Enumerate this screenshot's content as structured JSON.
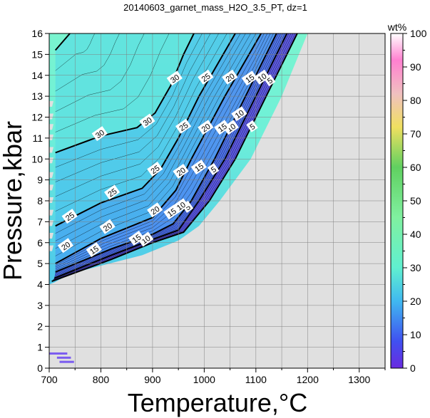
{
  "chart_data": {
    "type": "heatmap",
    "title": "20140603_garnet_mass_H2O_3.5_PT, dz=1",
    "xlabel": "Temperature,°C",
    "ylabel": "Pressure,kbar",
    "xlim": [
      700,
      1350
    ],
    "ylim": [
      0,
      16
    ],
    "xticks": [
      700,
      800,
      900,
      1000,
      1100,
      1200,
      1300
    ],
    "yticks": [
      0,
      1,
      2,
      3,
      4,
      5,
      6,
      7,
      8,
      9,
      10,
      11,
      12,
      13,
      14,
      15,
      16
    ],
    "grid": true,
    "colorbar": {
      "label": "wt%",
      "range": [
        0,
        100
      ],
      "ticks": [
        0,
        10,
        20,
        30,
        40,
        50,
        60,
        70,
        80,
        90,
        100
      ]
    },
    "no_data_color": "#e0e0e0",
    "contour_interval": 1,
    "labeled_contours": [
      {
        "level": 5,
        "points": [
          [
            705,
            4.15
          ],
          [
            820,
            5.2
          ],
          [
            900,
            6.0
          ],
          [
            960,
            6.5
          ],
          [
            1010,
            8.0
          ],
          [
            1060,
            10.0
          ],
          [
            1120,
            13.0
          ],
          [
            1180,
            16.0
          ]
        ]
      },
      {
        "level": 10,
        "points": [
          [
            710,
            4.3
          ],
          [
            820,
            5.4
          ],
          [
            900,
            6.15
          ],
          [
            950,
            6.6
          ],
          [
            990,
            8.0
          ],
          [
            1040,
            10.0
          ],
          [
            1100,
            13.0
          ],
          [
            1160,
            16.0
          ]
        ]
      },
      {
        "level": 15,
        "points": [
          [
            712,
            4.6
          ],
          [
            820,
            5.7
          ],
          [
            900,
            6.4
          ],
          [
            940,
            6.9
          ],
          [
            975,
            8.0
          ],
          [
            1020,
            10.0
          ],
          [
            1080,
            13.0
          ],
          [
            1140,
            16.0
          ]
        ]
      },
      {
        "level": 20,
        "points": [
          [
            712,
            5.0
          ],
          [
            800,
            6.2
          ],
          [
            900,
            7.2
          ],
          [
            945,
            8.5
          ],
          [
            975,
            10.0
          ],
          [
            1040,
            13.0
          ],
          [
            1110,
            16.0
          ]
        ]
      },
      {
        "level": 25,
        "points": [
          [
            712,
            6.8
          ],
          [
            800,
            7.9
          ],
          [
            880,
            8.6
          ],
          [
            915,
            9.5
          ],
          [
            950,
            11.0
          ],
          [
            990,
            13.0
          ],
          [
            1060,
            16.0
          ]
        ]
      },
      {
        "level": 30,
        "points": [
          [
            712,
            10.3
          ],
          [
            800,
            11.1
          ],
          [
            870,
            11.5
          ],
          [
            905,
            12.2
          ],
          [
            935,
            13.5
          ],
          [
            960,
            15.0
          ],
          [
            980,
            16.0
          ]
        ]
      },
      {
        "level": 35,
        "points": [
          [
            712,
            15.2
          ],
          [
            740,
            16.0
          ]
        ]
      }
    ],
    "contour_labels": [
      {
        "text": "5",
        "x": 968,
        "y": 7.7
      },
      {
        "text": "5",
        "x": 1018,
        "y": 9.5
      },
      {
        "text": "5",
        "x": 1093,
        "y": 11.55
      },
      {
        "text": "5",
        "x": 1127,
        "y": 13.75
      },
      {
        "text": "10",
        "x": 887,
        "y": 6.15
      },
      {
        "text": "10",
        "x": 955,
        "y": 7.75
      },
      {
        "text": "10",
        "x": 1052,
        "y": 11.5
      },
      {
        "text": "10",
        "x": 1068,
        "y": 12.15
      },
      {
        "text": "10",
        "x": 1112,
        "y": 13.9
      },
      {
        "text": "15",
        "x": 787,
        "y": 5.65
      },
      {
        "text": "15",
        "x": 869,
        "y": 6.2
      },
      {
        "text": "15",
        "x": 937,
        "y": 7.45
      },
      {
        "text": "15",
        "x": 990,
        "y": 9.6
      },
      {
        "text": "15",
        "x": 1035,
        "y": 11.5
      },
      {
        "text": "15",
        "x": 1088,
        "y": 13.85
      },
      {
        "text": "20",
        "x": 732,
        "y": 5.85
      },
      {
        "text": "20",
        "x": 813,
        "y": 6.75
      },
      {
        "text": "20",
        "x": 905,
        "y": 7.55
      },
      {
        "text": "20",
        "x": 955,
        "y": 9.4
      },
      {
        "text": "20",
        "x": 1003,
        "y": 11.5
      },
      {
        "text": "20",
        "x": 1050,
        "y": 13.9
      },
      {
        "text": "25",
        "x": 740,
        "y": 7.25
      },
      {
        "text": "25",
        "x": 822,
        "y": 8.4
      },
      {
        "text": "25",
        "x": 905,
        "y": 9.5
      },
      {
        "text": "25",
        "x": 960,
        "y": 11.55
      },
      {
        "text": "25",
        "x": 1003,
        "y": 13.9
      },
      {
        "text": "30",
        "x": 798,
        "y": 11.2
      },
      {
        "text": "30",
        "x": 890,
        "y": 11.8
      },
      {
        "text": "30",
        "x": 943,
        "y": 13.85
      }
    ],
    "no_data_region": [
      [
        700,
        0
      ],
      [
        1350,
        0
      ],
      [
        1350,
        16
      ],
      [
        1200,
        16
      ],
      [
        1150,
        13
      ],
      [
        1090,
        10
      ],
      [
        1030,
        8
      ],
      [
        990,
        6.8
      ],
      [
        950,
        6.1
      ],
      [
        880,
        5.4
      ],
      [
        800,
        4.9
      ],
      [
        740,
        4.5
      ],
      [
        710,
        4.1
      ],
      [
        700,
        4.0
      ]
    ],
    "left_edge_gaps": [
      {
        "y": 12.6
      },
      {
        "y": 12.0
      },
      {
        "y": 11.5
      },
      {
        "y": 11.0
      },
      {
        "y": 10.4
      },
      {
        "y": 9.9
      },
      {
        "y": 9.2
      },
      {
        "y": 8.6
      },
      {
        "y": 8.0
      },
      {
        "y": 7.4
      },
      {
        "y": 6.9
      },
      {
        "y": 6.3
      },
      {
        "y": 5.7
      }
    ],
    "stray_bars": [
      {
        "x": [
          700,
          735
        ],
        "y": 0.7
      },
      {
        "x": [
          715,
          742
        ],
        "y": 0.5
      },
      {
        "x": [
          720,
          748
        ],
        "y": 0.3
      }
    ]
  }
}
